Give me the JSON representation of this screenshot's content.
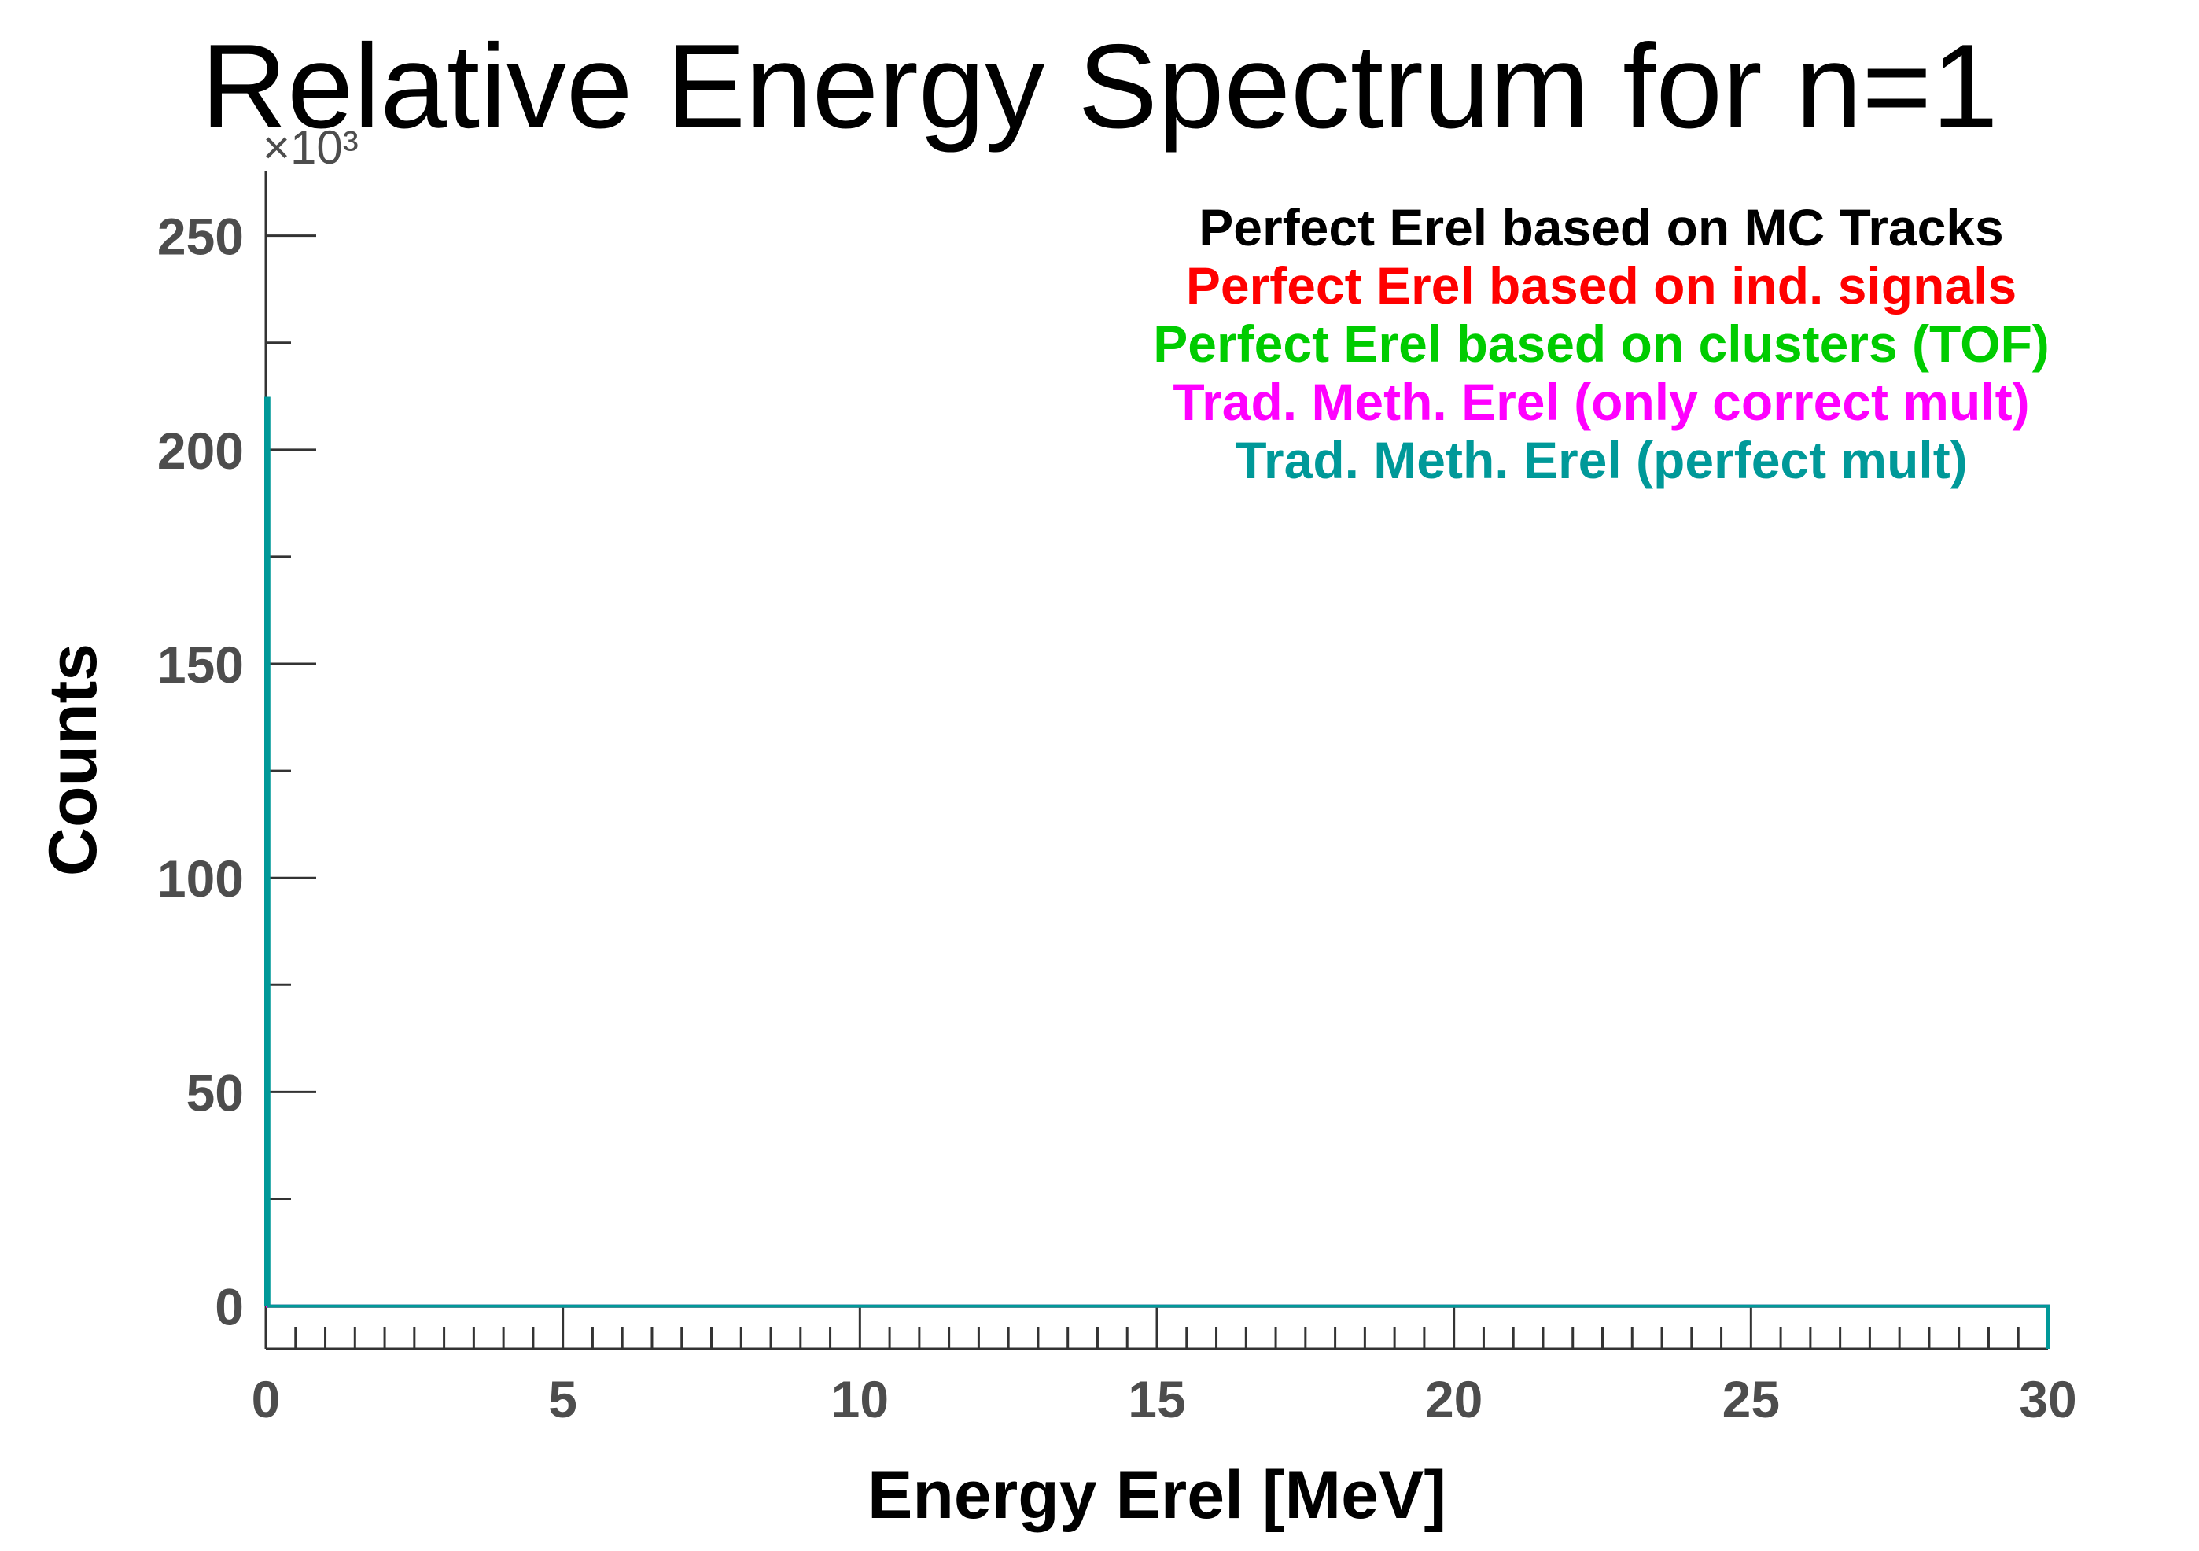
{
  "chart_data": {
    "type": "line",
    "title": "Relative Energy Spectrum for n=1",
    "xlabel": "Energy Erel [MeV]",
    "ylabel": "Counts",
    "y_multiplier_label": "×10³",
    "xlim": [
      0,
      30
    ],
    "ylim": [
      -10,
      265
    ],
    "x_ticks": [
      0,
      5,
      10,
      15,
      20,
      25,
      30
    ],
    "x_tick_labels": [
      "0",
      "5",
      "10",
      "15",
      "20",
      "25",
      "30"
    ],
    "y_ticks": [
      0,
      50,
      100,
      150,
      200,
      250
    ],
    "y_tick_labels": [
      "0",
      "50",
      "100",
      "150",
      "200",
      "250"
    ],
    "grid": false,
    "legend_position": "top-right",
    "series": [
      {
        "name": "Perfect Erel based on MC Tracks",
        "color": "#000000",
        "x": [
          0,
          0.05,
          30
        ],
        "y": [
          0,
          0,
          0
        ]
      },
      {
        "name": "Perfect Erel based on ind. signals",
        "color": "#ff0000",
        "x": [
          0,
          0.05,
          30
        ],
        "y": [
          0,
          0,
          0
        ]
      },
      {
        "name": "Perfect Erel based on clusters (TOF)",
        "color": "#00cc00",
        "x": [
          0,
          0.05,
          30
        ],
        "y": [
          0,
          0,
          0
        ]
      },
      {
        "name": "Trad. Meth. Erel (only correct mult)",
        "color": "#ff00ff",
        "x": [
          0,
          0.05,
          30
        ],
        "y": [
          0,
          0,
          0
        ]
      },
      {
        "name": "Trad. Meth. Erel (perfect mult)",
        "color": "#009999",
        "x": [
          0,
          0.05,
          30
        ],
        "y": [
          212,
          0,
          0
        ]
      }
    ]
  }
}
